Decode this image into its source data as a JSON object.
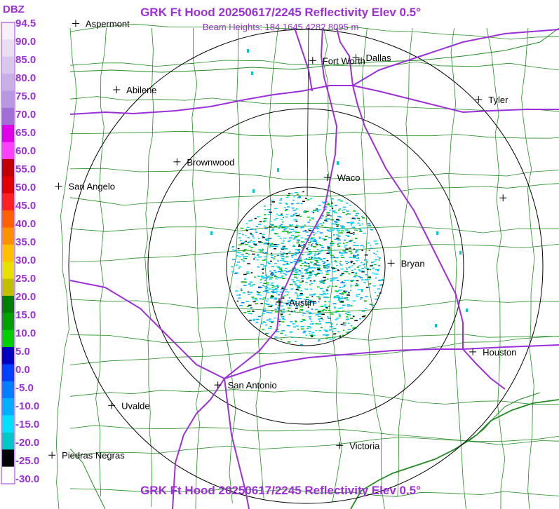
{
  "header": {
    "title": "GRK Ft Hood 20250617/2245 Reflectivity Elev 0.5°",
    "subtitle": "Beam Heights: 184 1645 4282 8095 m",
    "footer_title": "GRK Ft Hood 20250617/2245 Reflectivity Elev 0.5°"
  },
  "legend": {
    "unit": "DBZ",
    "labels": [
      "94.5",
      "90.0",
      "85.0",
      "80.0",
      "75.0",
      "70.0",
      "65.0",
      "60.0",
      "55.0",
      "50.0",
      "45.0",
      "40.0",
      "35.0",
      "30.0",
      "25.0",
      "20.0",
      "15.0",
      "10.0",
      "5.0",
      "0.0",
      "-5.0",
      "-10.0",
      "-15.0",
      "-20.0",
      "-25.0",
      "-30.0"
    ],
    "colors": [
      "#f5f0fa",
      "#e8e0f2",
      "#d8c8ec",
      "#c8b0e6",
      "#b898e0",
      "#a070d8",
      "#e000e8",
      "#ff40ff",
      "#c00000",
      "#e00000",
      "#ff2020",
      "#ff6000",
      "#ff9000",
      "#ffc000",
      "#e8e000",
      "#c0c000",
      "#008000",
      "#00a000",
      "#00d000",
      "#0000c0",
      "#0040ff",
      "#0080ff",
      "#00b0ff",
      "#00e0ff",
      "#00c8c8",
      "#000000",
      "#ffffff"
    ]
  },
  "colors": {
    "title": "#9b30d9",
    "highways": "#9b30d9",
    "counties": "#228b22",
    "rings": "#000000"
  },
  "cities": [
    {
      "name": "Aspermont",
      "lon": -100.23,
      "lat": 33.13
    },
    {
      "name": "Fort Worth",
      "lon": -97.33,
      "lat": 32.75
    },
    {
      "name": "Dallas",
      "lon": -96.8,
      "lat": 32.78
    },
    {
      "name": "Abilene",
      "lon": -99.73,
      "lat": 32.45
    },
    {
      "name": "Tyler",
      "lon": -95.3,
      "lat": 32.35
    },
    {
      "name": "Brownwood",
      "lon": -98.99,
      "lat": 31.71
    },
    {
      "name": "Waco",
      "lon": -97.15,
      "lat": 31.55
    },
    {
      "name": "San Angelo",
      "lon": -100.44,
      "lat": 31.46
    },
    {
      "name": "Bryan",
      "lon": -96.37,
      "lat": 30.67
    },
    {
      "name": "Austin",
      "lon": -97.74,
      "lat": 30.27
    },
    {
      "name": "Houston",
      "lon": -95.37,
      "lat": 29.76
    },
    {
      "name": "San Antonio",
      "lon": -98.49,
      "lat": 29.42
    },
    {
      "name": "Uvalde",
      "lon": -99.79,
      "lat": 29.21
    },
    {
      "name": "Victoria",
      "lon": -97.0,
      "lat": 28.8
    },
    {
      "name": "Piedras Negras",
      "lon": -100.52,
      "lat": 28.7
    },
    {
      "name": "",
      "lon": -95.0,
      "lat": 31.34
    }
  ],
  "radar_site": {
    "name": "GRK Ft Hood",
    "lon": -97.38,
    "lat": 30.72
  }
}
